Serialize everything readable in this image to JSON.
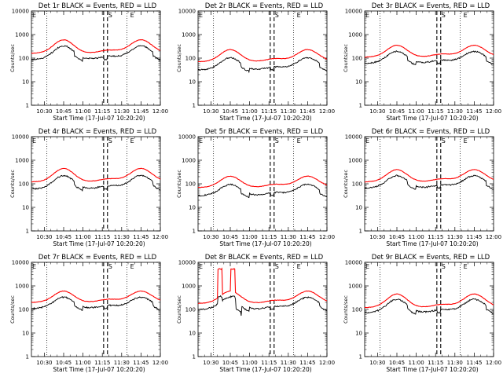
{
  "chart_data": [
    {
      "title": "Det 1r BLACK = Events, RED = LLD",
      "type": "line"
    },
    {
      "title": "Det 2r BLACK = Events, RED = LLD",
      "type": "line"
    },
    {
      "title": "Det 3r BLACK = Events, RED = LLD",
      "type": "line"
    },
    {
      "title": "Det 4r BLACK = Events, RED = LLD",
      "type": "line"
    },
    {
      "title": "Det 5r BLACK = Events, RED = LLD",
      "type": "line"
    },
    {
      "title": "Det 6r BLACK = Events, RED = LLD",
      "type": "line"
    },
    {
      "title": "Det 7r BLACK = Events, RED = LLD",
      "type": "line"
    },
    {
      "title": "Det 8r BLACK = Events, RED = LLD",
      "type": "line"
    },
    {
      "title": "Det 9r BLACK = Events, RED = LLD",
      "type": "line"
    }
  ],
  "shared": {
    "xlabel": "Start Time (17-Jul-07 10:20:20)",
    "ylabel": "Counts/sec",
    "x_tick_labels": [
      "10:30",
      "10:45",
      "11:00",
      "11:15",
      "11:30",
      "11:45",
      "12:00"
    ],
    "x_tick_minutes": [
      10,
      25,
      40,
      55,
      70,
      85,
      100
    ],
    "x_range_minutes": [
      0,
      100
    ],
    "y_tick_labels": [
      "1",
      "10",
      "100",
      "1000",
      "10000"
    ],
    "y_scale": "log",
    "y_range": [
      1,
      10000
    ],
    "marker_labels": [
      "E",
      "S",
      "E"
    ],
    "marker_minutes": [
      0,
      59,
      76
    ],
    "dotted_lines_minutes": [
      12,
      74
    ],
    "dashed_lines_minutes": [
      56,
      59
    ],
    "series_names": [
      "Events",
      "LLD"
    ],
    "colors": {
      "Events": "#000000",
      "LLD": "#ff0000"
    },
    "lld_baseline": [
      160,
      70,
      110,
      120,
      70,
      120,
      200,
      180,
      120
    ],
    "lld_peak": [
      600,
      230,
      350,
      450,
      210,
      400,
      600,
      600,
      450
    ],
    "events_ratio": [
      0.55,
      0.45,
      0.55,
      0.5,
      0.45,
      0.55,
      0.55,
      0.55,
      0.6
    ],
    "spike_panel": 7
  }
}
